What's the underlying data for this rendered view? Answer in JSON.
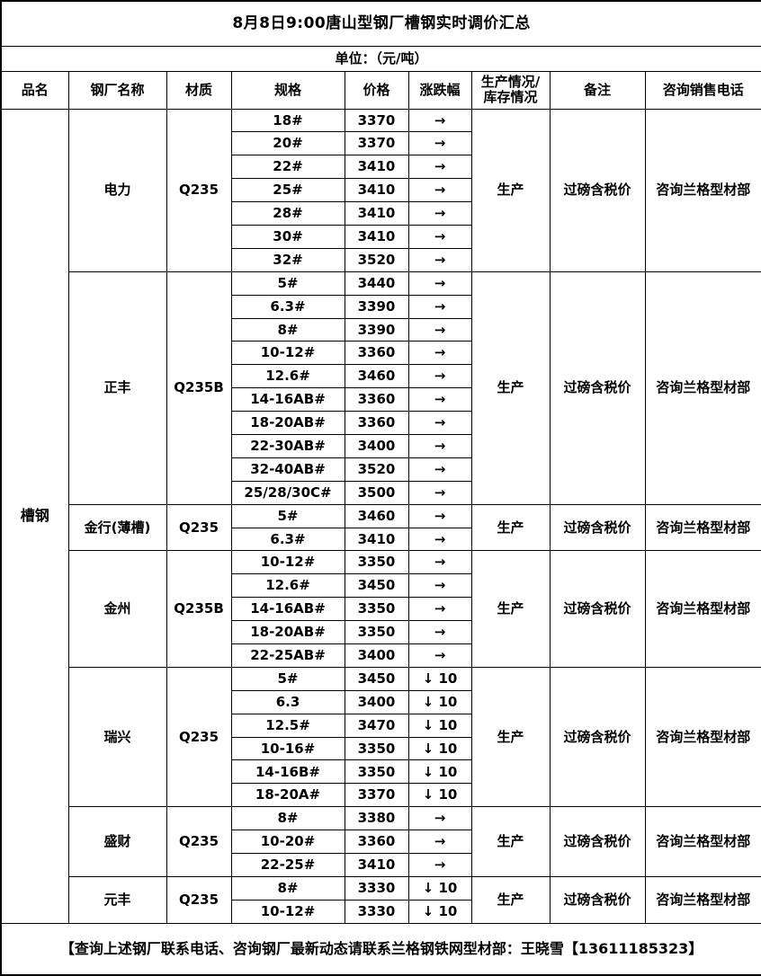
{
  "page": {
    "title": "8月8日9:00唐山型钢厂槽钢实时调价汇总",
    "unit_label": "单位：（元/吨）",
    "footer": "【查询上述钢厂联系电话、咨询钢厂最新动态请联系兰格钢铁网型材部：王晓雪【13611185323】"
  },
  "columns": {
    "product": "品名",
    "factory": "钢厂名称",
    "material": "材质",
    "spec": "规格",
    "price": "价格",
    "change": "涨跌幅",
    "production_line1": "生产情况/",
    "production_line2": "库存情况",
    "remark": "备注",
    "phone": "咨询销售电话"
  },
  "product_name": "槽钢",
  "symbols": {
    "flat_arrow": "→",
    "down_arrow": "↓"
  },
  "colors": {
    "border": "#000000",
    "text": "#000000",
    "background": "#ffffff"
  },
  "groups": [
    {
      "factory": "电力",
      "material": "Q235",
      "production": "生产",
      "remark": "过磅含税价",
      "phone": "咨询兰格型材部",
      "rows": [
        {
          "spec": "18#",
          "price": "3370",
          "change": "→"
        },
        {
          "spec": "20#",
          "price": "3370",
          "change": "→"
        },
        {
          "spec": "22#",
          "price": "3410",
          "change": "→"
        },
        {
          "spec": "25#",
          "price": "3410",
          "change": "→"
        },
        {
          "spec": "28#",
          "price": "3410",
          "change": "→"
        },
        {
          "spec": "30#",
          "price": "3410",
          "change": "→"
        },
        {
          "spec": "32#",
          "price": "3520",
          "change": "→"
        }
      ]
    },
    {
      "factory": "正丰",
      "material": "Q235B",
      "production": "生产",
      "remark": "过磅含税价",
      "phone": "咨询兰格型材部",
      "rows": [
        {
          "spec": "5#",
          "price": "3440",
          "change": "→"
        },
        {
          "spec": "6.3#",
          "price": "3390",
          "change": "→"
        },
        {
          "spec": "8#",
          "price": "3390",
          "change": "→"
        },
        {
          "spec": "10-12#",
          "price": "3360",
          "change": "→"
        },
        {
          "spec": "12.6#",
          "price": "3460",
          "change": "→"
        },
        {
          "spec": "14-16AB#",
          "price": "3360",
          "change": "→"
        },
        {
          "spec": "18-20AB#",
          "price": "3360",
          "change": "→"
        },
        {
          "spec": "22-30AB#",
          "price": "3400",
          "change": "→"
        },
        {
          "spec": "32-40AB#",
          "price": "3520",
          "change": "→"
        },
        {
          "spec": "25/28/30C#",
          "price": "3500",
          "change": "→"
        }
      ]
    },
    {
      "factory": "金行(薄槽)",
      "material": "Q235",
      "production": "生产",
      "remark": "过磅含税价",
      "phone": "咨询兰格型材部",
      "rows": [
        {
          "spec": "5#",
          "price": "3460",
          "change": "→"
        },
        {
          "spec": "6.3#",
          "price": "3410",
          "change": "→"
        }
      ]
    },
    {
      "factory": "金州",
      "material": "Q235B",
      "production": "生产",
      "remark": "过磅含税价",
      "phone": "咨询兰格型材部",
      "rows": [
        {
          "spec": "10-12#",
          "price": "3350",
          "change": "→"
        },
        {
          "spec": "12.6#",
          "price": "3450",
          "change": "→"
        },
        {
          "spec": "14-16AB#",
          "price": "3350",
          "change": "→"
        },
        {
          "spec": "18-20AB#",
          "price": "3350",
          "change": "→"
        },
        {
          "spec": "22-25AB#",
          "price": "3400",
          "change": "→"
        }
      ]
    },
    {
      "factory": "瑞兴",
      "material": "Q235",
      "production": "生产",
      "remark": "过磅含税价",
      "phone": "咨询兰格型材部",
      "rows": [
        {
          "spec": "5#",
          "price": "3450",
          "change": "↓ 10"
        },
        {
          "spec": "6.3",
          "price": "3400",
          "change": "↓ 10"
        },
        {
          "spec": "12.5#",
          "price": "3470",
          "change": "↓ 10"
        },
        {
          "spec": "10-16#",
          "price": "3350",
          "change": "↓ 10"
        },
        {
          "spec": "14-16B#",
          "price": "3350",
          "change": "↓ 10"
        },
        {
          "spec": "18-20A#",
          "price": "3370",
          "change": "↓ 10"
        }
      ]
    },
    {
      "factory": "盛财",
      "material": "Q235",
      "production": "生产",
      "remark": "过磅含税价",
      "phone": "咨询兰格型材部",
      "rows": [
        {
          "spec": "8#",
          "price": "3380",
          "change": "→"
        },
        {
          "spec": "10-20#",
          "price": "3360",
          "change": "→"
        },
        {
          "spec": "22-25#",
          "price": "3410",
          "change": "→"
        }
      ]
    },
    {
      "factory": "元丰",
      "material": "Q235",
      "production": "生产",
      "remark": "过磅含税价",
      "phone": "咨询兰格型材部",
      "rows": [
        {
          "spec": "8#",
          "price": "3330",
          "change": "↓ 10"
        },
        {
          "spec": "10-12#",
          "price": "3330",
          "change": "↓ 10"
        }
      ]
    }
  ]
}
